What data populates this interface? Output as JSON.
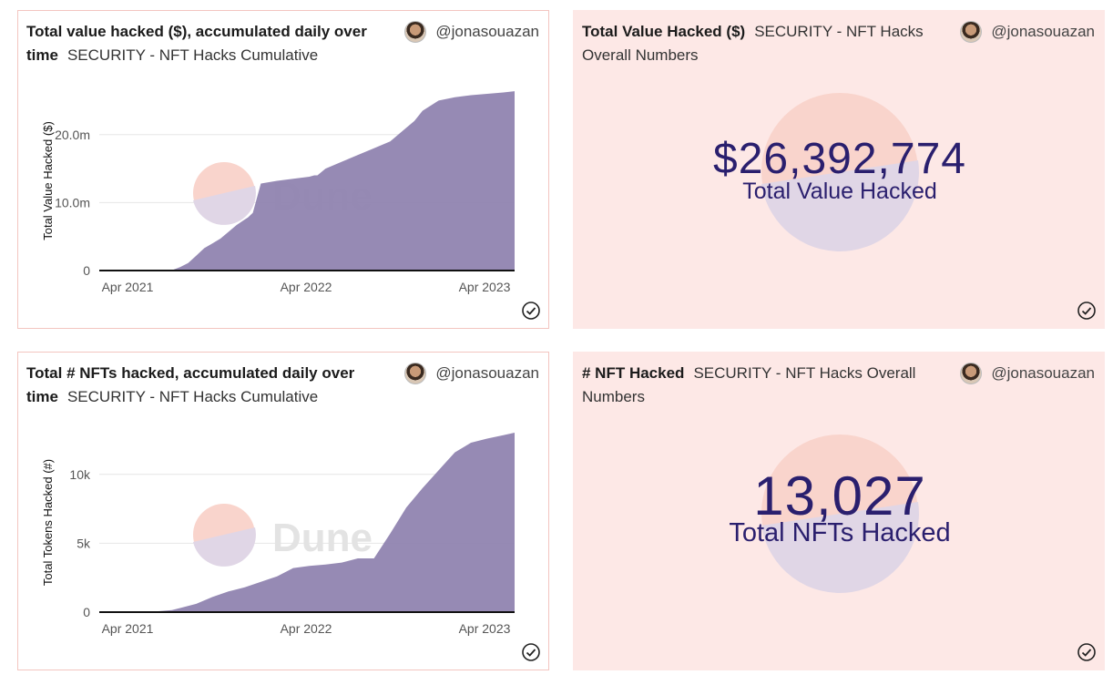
{
  "cards": [
    {
      "title": "Total value hacked ($), accumulated daily over time",
      "subtitle": "SECURITY - NFT Hacks Cumulative",
      "author": "@jonasouazan",
      "watermark": "Dune"
    },
    {
      "title": "Total Value Hacked ($)",
      "subtitle": "SECURITY - NFT Hacks Overall Numbers",
      "author": "@jonasouazan",
      "value": "$26,392,774",
      "label": "Total Value Hacked"
    },
    {
      "title": "Total # NFTs hacked, accumulated daily over time",
      "subtitle": "SECURITY - NFT Hacks Cumulative",
      "author": "@jonasouazan",
      "watermark": "Dune"
    },
    {
      "title": "# NFT Hacked",
      "subtitle": "SECURITY - NFT Hacks Overall Numbers",
      "author": "@jonasouazan",
      "value": "13,027",
      "label": "Total NFTs Hacked"
    }
  ],
  "colors": {
    "area": "#9084b0",
    "accent": "#2a1f6e",
    "card_border": "#f3c5c0",
    "stat_bg": "#fde8e6"
  },
  "icons": {
    "author": "avatar",
    "status": "check-circle-icon",
    "watermark": "dune-logo"
  },
  "chart_data": [
    {
      "type": "area",
      "ylabel": "Total Value Hacked ($)",
      "xlabel": "",
      "x_ticks": [
        "Apr 2021",
        "Apr 2022",
        "Apr 2023"
      ],
      "y_ticks": [
        "0",
        "10.0m",
        "20.0m"
      ],
      "x_range": [
        0,
        25.7
      ],
      "ylim": [
        0,
        26400000
      ],
      "grid": true,
      "series": [
        {
          "x": [
            0,
            3,
            4.5,
            5,
            5.5,
            6,
            6.5,
            7,
            7.5,
            8,
            8.5,
            9,
            9.2,
            9.5,
            10,
            11,
            12,
            13,
            13.3,
            13.5,
            14,
            15,
            16,
            17,
            18,
            19,
            19.5,
            20,
            21,
            22,
            23,
            24,
            25,
            25.7
          ],
          "y": [
            0,
            0,
            50000,
            500000,
            1100000,
            2200000,
            3300000,
            4000000,
            4700000,
            5700000,
            6700000,
            7500000,
            7800000,
            8500000,
            12800000,
            13200000,
            13500000,
            13800000,
            14000000,
            14000000,
            15000000,
            16000000,
            17000000,
            18000000,
            19000000,
            21000000,
            22000000,
            23500000,
            25000000,
            25500000,
            25800000,
            26000000,
            26200000,
            26392774
          ]
        }
      ]
    },
    {
      "type": "area",
      "ylabel": "Total Tokens Hacked (#)",
      "xlabel": "",
      "x_ticks": [
        "Apr 2021",
        "Apr 2022",
        "Apr 2023"
      ],
      "y_ticks": [
        "0",
        "5k",
        "10k"
      ],
      "x_range": [
        0,
        25.7
      ],
      "ylim": [
        0,
        13027
      ],
      "grid": true,
      "series": [
        {
          "x": [
            0,
            3,
            4.5,
            5,
            6,
            7,
            8,
            9,
            10,
            11,
            12,
            13,
            14,
            15,
            16,
            17,
            18,
            19,
            20,
            21,
            22,
            23,
            24,
            25,
            25.7
          ],
          "y": [
            0,
            0,
            150,
            300,
            600,
            1100,
            1500,
            1800,
            2200,
            2600,
            3200,
            3350,
            3450,
            3600,
            3900,
            3900,
            5700,
            7600,
            9000,
            10300,
            11600,
            12300,
            12600,
            12850,
            13027
          ]
        }
      ]
    }
  ]
}
